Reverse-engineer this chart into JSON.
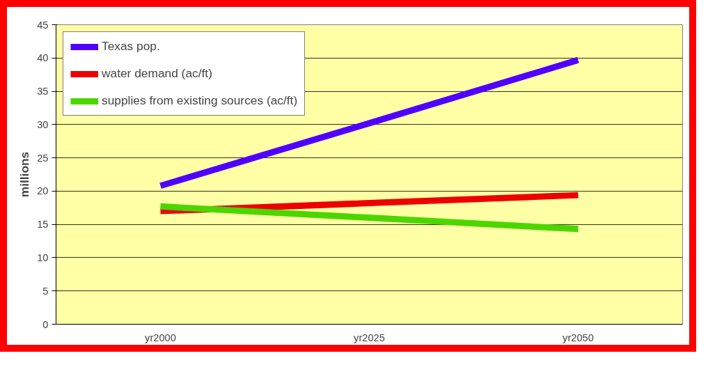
{
  "chart_data": {
    "type": "line",
    "ylabel": "millions",
    "categories": [
      "yr2000",
      "yr2025",
      "yr2050"
    ],
    "ylim": [
      0,
      45
    ],
    "yticks": [
      0,
      5,
      10,
      15,
      20,
      25,
      30,
      35,
      40,
      45
    ],
    "grid": "y",
    "legend": "top left",
    "series": [
      {
        "name": "Texas pop.",
        "color": "#5000ff",
        "values": [
          20.8,
          30.2,
          39.7
        ]
      },
      {
        "name": "water demand (ac/ft)",
        "color": "#ee0000",
        "values": [
          17.0,
          18.2,
          19.4
        ]
      },
      {
        "name": "supplies from existing sources (ac/ft)",
        "color": "#4cd600",
        "values": [
          17.7,
          16.0,
          14.3
        ]
      }
    ]
  }
}
